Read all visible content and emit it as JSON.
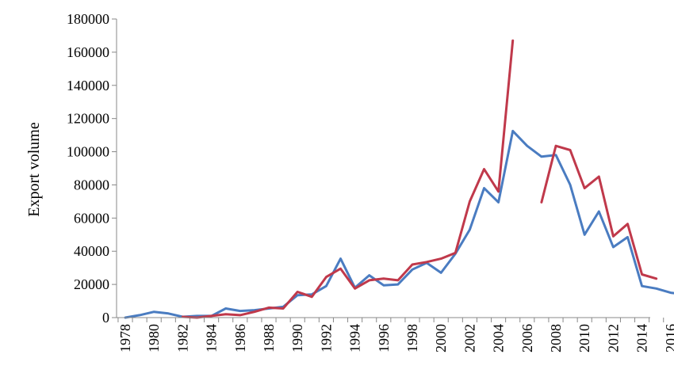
{
  "chart_data": {
    "type": "line",
    "title": "",
    "xlabel": "",
    "ylabel": "Export volume",
    "ylim": [
      0,
      180000
    ],
    "yticks": [
      0,
      20000,
      40000,
      60000,
      80000,
      100000,
      120000,
      140000,
      160000,
      180000
    ],
    "xlim": [
      1978,
      2017
    ],
    "xticks": [
      1978,
      1980,
      1982,
      1984,
      1986,
      1988,
      1990,
      1992,
      1994,
      1996,
      1998,
      2000,
      2002,
      2004,
      2006,
      2008,
      2010,
      2012,
      2014,
      2016
    ],
    "grid": false,
    "legend": "none",
    "series": [
      {
        "color": "#4a7cc1",
        "points": [
          [
            1978,
            0
          ],
          [
            1979,
            1500
          ],
          [
            1980,
            3500
          ],
          [
            1981,
            2500
          ],
          [
            1982,
            500
          ],
          [
            1983,
            1000
          ],
          [
            1984,
            1000
          ],
          [
            1985,
            5500
          ],
          [
            1986,
            4000
          ],
          [
            1987,
            4500
          ],
          [
            1988,
            5500
          ],
          [
            1989,
            6500
          ],
          [
            1990,
            13500
          ],
          [
            1991,
            14000
          ],
          [
            1992,
            19000
          ],
          [
            1993,
            35500
          ],
          [
            1994,
            18000
          ],
          [
            1995,
            25500
          ],
          [
            1996,
            19500
          ],
          [
            1997,
            20000
          ],
          [
            1998,
            29000
          ],
          [
            1999,
            33000
          ],
          [
            2000,
            27000
          ],
          [
            2001,
            38500
          ],
          [
            2002,
            53000
          ],
          [
            2003,
            78000
          ],
          [
            2004,
            69500
          ],
          [
            2005,
            112500
          ],
          [
            2006,
            103500
          ],
          [
            2007,
            97000
          ],
          [
            2008,
            98000
          ],
          [
            2009,
            80000
          ],
          [
            2010,
            50000
          ],
          [
            2011,
            64000
          ],
          [
            2012,
            42500
          ],
          [
            2013,
            48500
          ],
          [
            2014,
            19000
          ],
          [
            2015,
            17500
          ],
          [
            2016,
            15000
          ],
          [
            2017,
            14000
          ]
        ]
      },
      {
        "color": "#c0394b",
        "segments": [
          [
            [
              1982,
              500
            ],
            [
              1983,
              0
            ],
            [
              1984,
              1000
            ],
            [
              1985,
              2000
            ],
            [
              1986,
              1500
            ],
            [
              1987,
              3500
            ],
            [
              1988,
              6000
            ],
            [
              1989,
              5500
            ],
            [
              1990,
              15500
            ],
            [
              1991,
              12500
            ],
            [
              1992,
              24500
            ],
            [
              1993,
              29500
            ],
            [
              1994,
              17500
            ],
            [
              1995,
              22500
            ],
            [
              1996,
              23500
            ],
            [
              1997,
              22500
            ],
            [
              1998,
              32000
            ],
            [
              1999,
              33500
            ],
            [
              2000,
              35500
            ],
            [
              2001,
              39000
            ],
            [
              2002,
              70000
            ],
            [
              2003,
              89500
            ],
            [
              2004,
              76000
            ],
            [
              2005,
              167000
            ]
          ],
          [
            [
              2007,
              69500
            ],
            [
              2008,
              103500
            ],
            [
              2009,
              101000
            ],
            [
              2010,
              78000
            ],
            [
              2011,
              85000
            ],
            [
              2012,
              49000
            ],
            [
              2013,
              56500
            ],
            [
              2014,
              26000
            ],
            [
              2015,
              23500
            ]
          ]
        ]
      }
    ]
  }
}
